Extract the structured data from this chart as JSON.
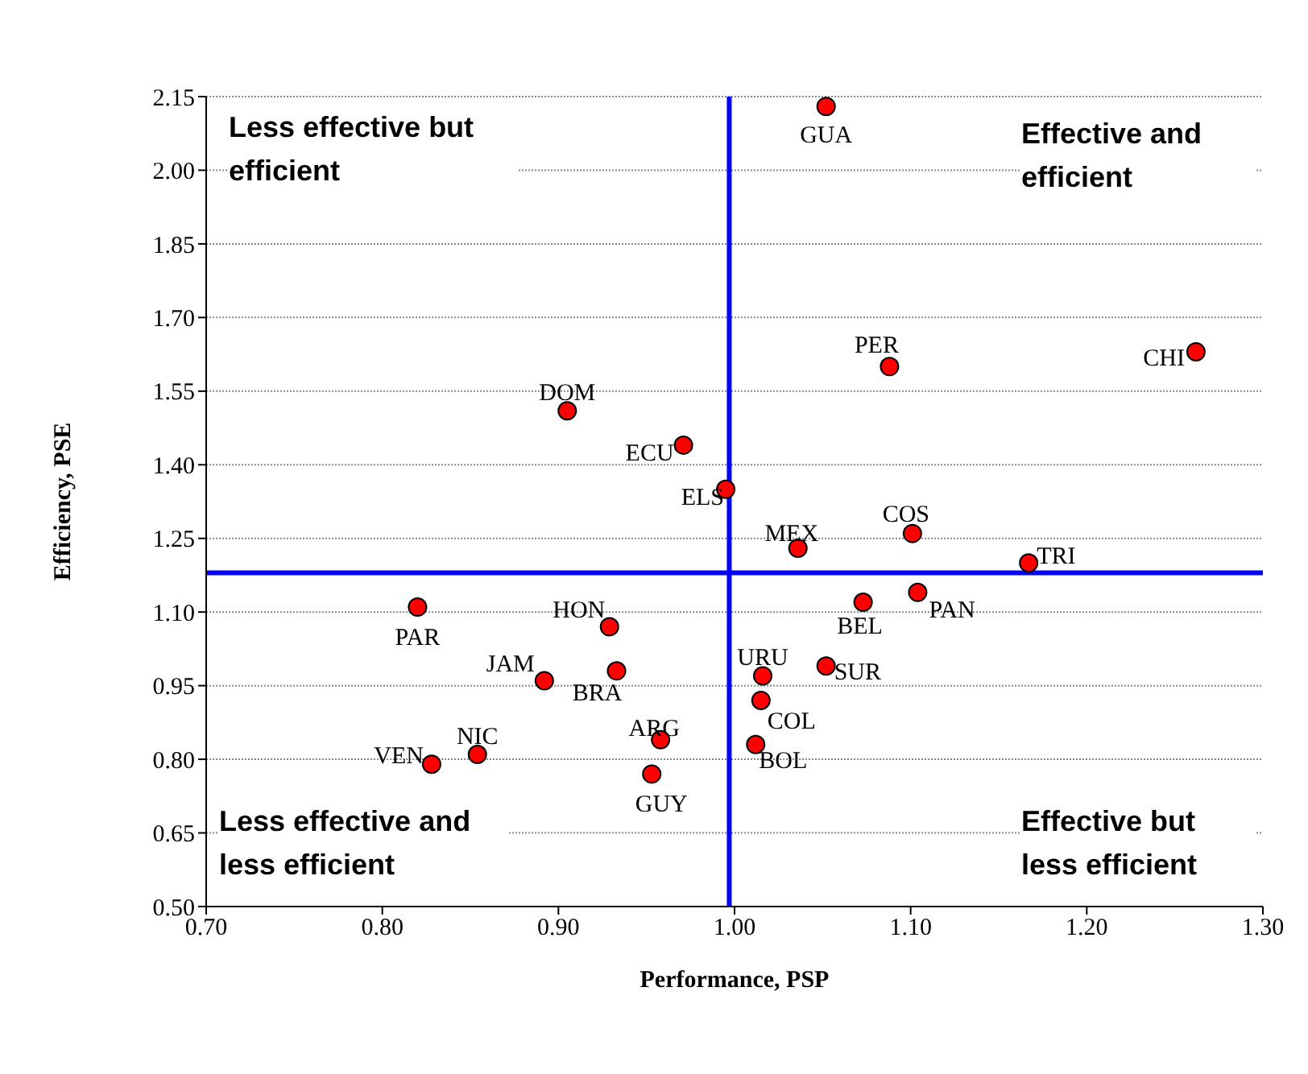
{
  "chart_data": {
    "type": "scatter",
    "xlabel": "Performance, PSP",
    "ylabel": "Efficiency, PSE",
    "xlim": [
      0.7,
      1.3
    ],
    "xticks": [
      {
        "value": 0.7,
        "label": "0.70"
      },
      {
        "value": 0.8,
        "label": "0.80"
      },
      {
        "value": 0.9,
        "label": "0.90"
      },
      {
        "value": 1.0,
        "label": "1.00"
      },
      {
        "value": 1.1,
        "label": "1.10"
      },
      {
        "value": 1.2,
        "label": "1.20"
      },
      {
        "value": 1.3,
        "label": "1.30"
      }
    ],
    "ylim": [
      0.5,
      2.15
    ],
    "yticks": [
      {
        "value": 0.5,
        "label": "0.50"
      },
      0.65,
      {
        "value": 0.8,
        "label": "0.80"
      },
      0.95,
      {
        "value": 1.1,
        "label": "1.10"
      },
      1.25,
      {
        "value": 1.4,
        "label": "1.40"
      },
      1.55,
      {
        "value": 1.7,
        "label": "1.70"
      },
      1.85,
      {
        "value": 2.0,
        "label": "2.00"
      },
      2.15
    ],
    "grid": "y",
    "marker": "circle",
    "series": [
      {
        "color": "#ff0000",
        "x": [
          1.052,
          1.088,
          1.262,
          0.905,
          0.971,
          0.995,
          1.036,
          1.101,
          1.167,
          1.104,
          1.073,
          1.016,
          1.052,
          1.015,
          1.012,
          0.82,
          0.929,
          0.892,
          0.933,
          0.958,
          0.953,
          0.854,
          0.828
        ],
        "values": [
          2.13,
          1.6,
          1.63,
          1.51,
          1.44,
          1.35,
          1.23,
          1.26,
          1.2,
          1.14,
          1.12,
          0.97,
          0.99,
          0.92,
          0.83,
          1.11,
          1.07,
          0.96,
          0.98,
          0.84,
          0.77,
          0.81,
          0.79
        ],
        "value_labels": [
          "GUA",
          "PER",
          "CHI",
          "DOM",
          "ECU",
          "ELS",
          "MEX",
          "COS",
          "TRI",
          "PAN",
          "BEL",
          "URU",
          "SUR",
          "COL",
          "BOL",
          "PAR",
          "HON",
          "JAM",
          "BRA",
          "ARG",
          "GUY",
          "NIC",
          "VEN"
        ]
      }
    ],
    "ref_lines": [
      {
        "axis": "x",
        "value": 0.997,
        "color": "#0000ff"
      },
      {
        "axis": "y",
        "value": 1.18,
        "color": "#0000ff"
      }
    ],
    "annotations": [
      "Less effective but efficient",
      "Effective and efficient",
      "Less effective and less efficient",
      "Effective but less efficient"
    ]
  }
}
